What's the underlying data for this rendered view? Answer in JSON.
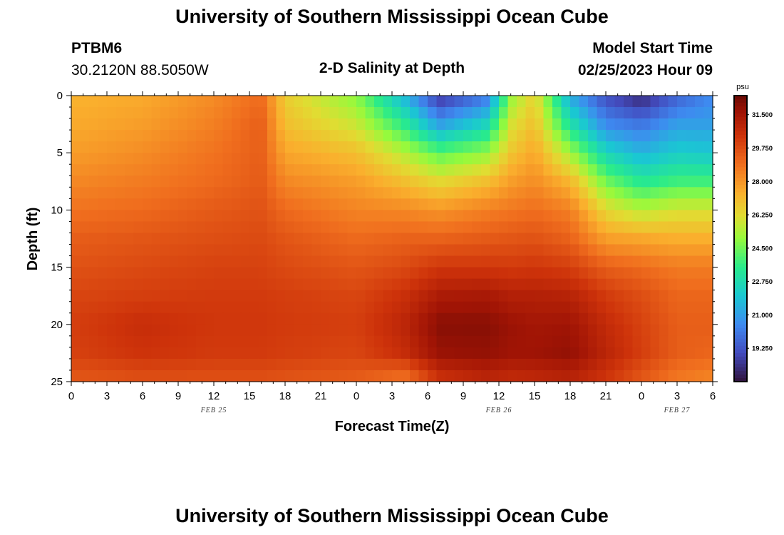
{
  "header": {
    "title": "University of Southern Mississippi Ocean Cube",
    "station_id": "PTBM6",
    "coords": "30.2120N  88.5050W",
    "subtitle": "2-D Salinity at Depth",
    "model_start_label": "Model Start Time",
    "model_start_value": "02/25/2023 Hour 09"
  },
  "footer": {
    "title": "University of Southern Mississippi Ocean Cube"
  },
  "chart_data": {
    "type": "heatmap",
    "title": "2-D Salinity at Depth",
    "xlabel": "Forecast Time(Z)",
    "ylabel": "Depth (ft)",
    "x_range_hours": [
      0,
      54
    ],
    "y_range_ft": [
      0,
      25
    ],
    "x_ticks": [
      "0",
      "3",
      "6",
      "9",
      "12",
      "15",
      "18",
      "21",
      "0",
      "3",
      "6",
      "9",
      "12",
      "15",
      "18",
      "21",
      "0",
      "3",
      "6"
    ],
    "x_tick_hours": [
      0,
      3,
      6,
      9,
      12,
      15,
      18,
      21,
      24,
      27,
      30,
      33,
      36,
      39,
      42,
      45,
      48,
      51,
      54
    ],
    "date_labels": [
      {
        "label": "FEB 25",
        "hour": 12
      },
      {
        "label": "FEB 26",
        "hour": 36
      },
      {
        "label": "FEB 27",
        "hour": 51
      }
    ],
    "y_ticks": [
      0,
      5,
      10,
      15,
      20,
      25
    ],
    "colorbar": {
      "unit": "psu",
      "min": 17.5,
      "max": 32.5,
      "labels": [
        "31.500",
        "29.750",
        "28.000",
        "26.250",
        "24.500",
        "22.750",
        "21.000",
        "19.250"
      ],
      "label_values": [
        31.5,
        29.75,
        28.0,
        26.25,
        24.5,
        22.75,
        21.0,
        19.25
      ]
    },
    "depths_ft": [
      0,
      2.5,
      5,
      7.5,
      10,
      12.5,
      15,
      17.5,
      20,
      22.5,
      25
    ],
    "times_h": [
      0,
      6,
      12,
      16,
      18,
      24,
      28,
      31,
      35,
      37,
      39,
      42,
      45,
      48,
      51,
      54
    ],
    "salinity_psu": [
      [
        27.3,
        27.5,
        28.2,
        29.0,
        26.6,
        24.8,
        21.5,
        18.4,
        20.0,
        25.0,
        26.5,
        21.2,
        19.0,
        18.0,
        19.5,
        20.5
      ],
      [
        27.5,
        27.8,
        28.5,
        29.3,
        27.0,
        25.8,
        23.5,
        21.0,
        22.5,
        26.0,
        27.0,
        23.0,
        20.5,
        20.0,
        21.0,
        21.0
      ],
      [
        27.8,
        28.2,
        28.8,
        29.3,
        27.6,
        27.0,
        25.5,
        24.2,
        25.0,
        26.8,
        27.6,
        25.2,
        22.5,
        21.5,
        22.2,
        22.0
      ],
      [
        28.3,
        28.6,
        29.0,
        29.4,
        28.3,
        27.8,
        27.0,
        26.3,
        27.0,
        27.8,
        28.2,
        27.2,
        24.5,
        23.3,
        23.8,
        23.8
      ],
      [
        28.8,
        29.0,
        29.4,
        29.6,
        29.0,
        28.4,
        28.3,
        28.0,
        28.5,
        28.7,
        28.9,
        28.5,
        26.3,
        25.5,
        26.0,
        26.0
      ],
      [
        29.3,
        29.5,
        29.7,
        29.8,
        29.5,
        29.0,
        29.2,
        29.2,
        29.4,
        29.5,
        29.6,
        29.2,
        27.8,
        27.6,
        27.4,
        27.4
      ],
      [
        29.6,
        29.8,
        30.0,
        30.0,
        29.8,
        29.5,
        29.8,
        30.3,
        30.3,
        30.2,
        30.3,
        30.1,
        29.3,
        29.0,
        28.6,
        28.6
      ],
      [
        29.9,
        30.1,
        30.2,
        30.2,
        30.1,
        29.9,
        30.5,
        31.3,
        31.4,
        31.1,
        31.1,
        31.0,
        30.2,
        29.7,
        29.1,
        29.1
      ],
      [
        30.1,
        30.6,
        30.3,
        30.3,
        30.2,
        30.1,
        30.9,
        32.0,
        32.0,
        31.7,
        31.5,
        31.6,
        30.7,
        30.0,
        29.3,
        29.3
      ],
      [
        30.0,
        30.4,
        30.2,
        30.2,
        30.1,
        29.9,
        30.6,
        31.7,
        31.8,
        31.6,
        31.6,
        31.8,
        30.9,
        30.1,
        29.3,
        29.1
      ],
      [
        29.4,
        29.6,
        29.6,
        29.6,
        29.5,
        29.3,
        28.6,
        30.3,
        30.8,
        30.6,
        30.7,
        30.9,
        30.3,
        29.4,
        28.6,
        28.3
      ]
    ]
  }
}
